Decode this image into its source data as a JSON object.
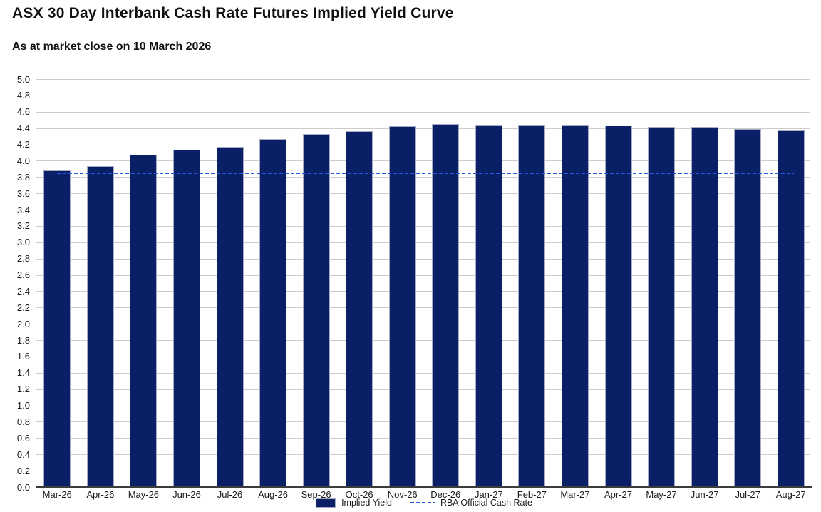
{
  "header": {
    "title": "ASX 30 Day Interbank Cash Rate Futures Implied Yield Curve",
    "subtitle": "As at market close on 10 March 2026"
  },
  "chart_data": {
    "type": "bar",
    "title": "ASX 30 Day Interbank Cash Rate Futures Implied Yield Curve",
    "subtitle": "As at market close on 10 March 2026",
    "categories": [
      "Mar-26",
      "Apr-26",
      "May-26",
      "Jun-26",
      "Jul-26",
      "Aug-26",
      "Sep-26",
      "Oct-26",
      "Nov-26",
      "Dec-26",
      "Jan-27",
      "Feb-27",
      "Mar-27",
      "Apr-27",
      "May-27",
      "Jun-27",
      "Jul-27",
      "Aug-27"
    ],
    "series": [
      {
        "name": "Implied Yield",
        "type": "bar",
        "values": [
          3.88,
          3.935,
          4.07,
          4.135,
          4.17,
          4.265,
          4.325,
          4.36,
          4.425,
          4.445,
          4.44,
          4.44,
          4.44,
          4.435,
          4.415,
          4.415,
          4.385,
          4.375
        ]
      },
      {
        "name": "RBA Official Cash Rate",
        "type": "dashed-line",
        "value": 3.85
      }
    ],
    "xlabel": "",
    "ylabel": "",
    "ylim": [
      0.0,
      5.0
    ],
    "ytick_step": 0.2,
    "yticks": [
      "0.0",
      "0.2",
      "0.4",
      "0.6",
      "0.8",
      "1.0",
      "1.2",
      "1.4",
      "1.6",
      "1.8",
      "2.0",
      "2.2",
      "2.4",
      "2.6",
      "2.8",
      "3.0",
      "3.2",
      "3.4",
      "3.6",
      "3.8",
      "4.0",
      "4.2",
      "4.4",
      "4.6",
      "4.8",
      "5.0"
    ],
    "grid": "horizontal",
    "legend_position": "bottom-center",
    "colors": {
      "bar": "#0a2066",
      "bar_border": "#a4abc2",
      "dashed_line": "#2857dd",
      "gridline": "#cccccc",
      "axis": "#3c3c3c",
      "text": "#111111"
    }
  },
  "legend": {
    "implied_yield_label": "Implied Yield",
    "cash_rate_label": "RBA Official Cash Rate"
  }
}
